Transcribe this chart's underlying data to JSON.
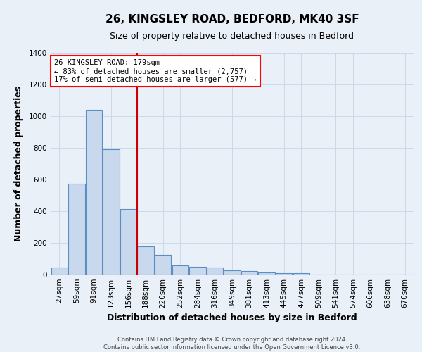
{
  "title": "26, KINGSLEY ROAD, BEDFORD, MK40 3SF",
  "subtitle": "Size of property relative to detached houses in Bedford",
  "xlabel": "Distribution of detached houses by size in Bedford",
  "ylabel": "Number of detached properties",
  "categories": [
    "27sqm",
    "59sqm",
    "91sqm",
    "123sqm",
    "156sqm",
    "188sqm",
    "220sqm",
    "252sqm",
    "284sqm",
    "316sqm",
    "349sqm",
    "381sqm",
    "413sqm",
    "445sqm",
    "477sqm",
    "509sqm",
    "541sqm",
    "574sqm",
    "606sqm",
    "638sqm",
    "670sqm"
  ],
  "values": [
    43,
    575,
    1040,
    790,
    415,
    180,
    125,
    60,
    50,
    43,
    25,
    22,
    15,
    10,
    9,
    0,
    0,
    0,
    0,
    0,
    0
  ],
  "bar_color": "#c8d9ee",
  "bar_edge_color": "#5b8ec4",
  "background_color": "#eaf0f8",
  "red_line_bar_index": 5,
  "annotation_text_line1": "26 KINGSLEY ROAD: 179sqm",
  "annotation_text_line2": "← 83% of detached houses are smaller (2,757)",
  "annotation_text_line3": "17% of semi-detached houses are larger (577) →",
  "annotation_box_color": "white",
  "annotation_box_edge_color": "red",
  "red_line_color": "#cc0000",
  "ylim": [
    0,
    1400
  ],
  "yticks": [
    0,
    200,
    400,
    600,
    800,
    1000,
    1200,
    1400
  ],
  "footer_line1": "Contains HM Land Registry data © Crown copyright and database right 2024.",
  "footer_line2": "Contains public sector information licensed under the Open Government Licence v3.0.",
  "title_fontsize": 11,
  "subtitle_fontsize": 9,
  "tick_fontsize": 7.5,
  "label_fontsize": 9,
  "annotation_fontsize": 7.5,
  "grid_color": "#c8d4e8"
}
